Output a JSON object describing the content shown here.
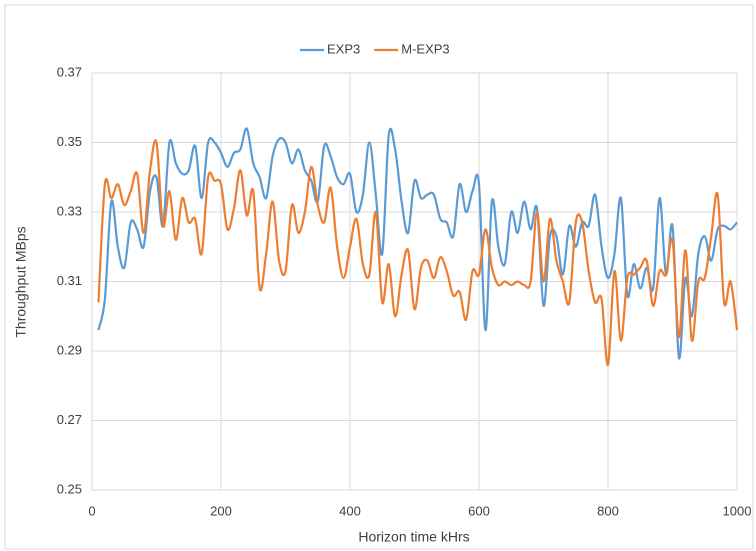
{
  "chart_data": {
    "type": "line",
    "x": [
      10,
      20,
      30,
      40,
      50,
      60,
      70,
      80,
      90,
      100,
      110,
      120,
      130,
      140,
      150,
      160,
      170,
      180,
      190,
      200,
      210,
      220,
      230,
      240,
      250,
      260,
      270,
      280,
      290,
      300,
      310,
      320,
      330,
      340,
      350,
      360,
      370,
      380,
      390,
      400,
      410,
      420,
      430,
      440,
      450,
      460,
      470,
      480,
      490,
      500,
      510,
      520,
      530,
      540,
      550,
      560,
      570,
      580,
      590,
      600,
      610,
      620,
      630,
      640,
      650,
      660,
      670,
      680,
      690,
      700,
      710,
      720,
      730,
      740,
      750,
      760,
      770,
      780,
      790,
      800,
      810,
      820,
      830,
      840,
      850,
      860,
      870,
      880,
      890,
      900,
      910,
      920,
      930,
      940,
      950,
      960,
      970,
      980,
      990,
      1000
    ],
    "series": [
      {
        "name": "EXP3",
        "color": "#5b9bd5",
        "values": [
          0.296,
          0.305,
          0.333,
          0.32,
          0.314,
          0.327,
          0.325,
          0.32,
          0.336,
          0.34,
          0.326,
          0.35,
          0.344,
          0.341,
          0.342,
          0.349,
          0.334,
          0.35,
          0.35,
          0.347,
          0.343,
          0.347,
          0.348,
          0.354,
          0.344,
          0.34,
          0.334,
          0.346,
          0.351,
          0.35,
          0.344,
          0.348,
          0.342,
          0.339,
          0.333,
          0.349,
          0.346,
          0.34,
          0.338,
          0.341,
          0.33,
          0.335,
          0.35,
          0.335,
          0.318,
          0.352,
          0.348,
          0.333,
          0.324,
          0.339,
          0.334,
          0.335,
          0.335,
          0.328,
          0.327,
          0.323,
          0.338,
          0.33,
          0.336,
          0.338,
          0.296,
          0.333,
          0.32,
          0.315,
          0.33,
          0.324,
          0.333,
          0.325,
          0.331,
          0.303,
          0.323,
          0.323,
          0.312,
          0.326,
          0.32,
          0.327,
          0.326,
          0.335,
          0.32,
          0.311,
          0.318,
          0.334,
          0.306,
          0.315,
          0.308,
          0.314,
          0.308,
          0.334,
          0.312,
          0.326,
          0.288,
          0.311,
          0.3,
          0.318,
          0.323,
          0.316,
          0.325,
          0.326,
          0.325,
          0.327
        ]
      },
      {
        "name": "M-EXP3",
        "color": "#ed7d31",
        "values": [
          0.304,
          0.338,
          0.334,
          0.338,
          0.332,
          0.336,
          0.341,
          0.324,
          0.342,
          0.35,
          0.326,
          0.336,
          0.322,
          0.334,
          0.327,
          0.328,
          0.318,
          0.34,
          0.339,
          0.338,
          0.325,
          0.331,
          0.342,
          0.329,
          0.336,
          0.308,
          0.318,
          0.333,
          0.316,
          0.313,
          0.332,
          0.324,
          0.33,
          0.343,
          0.332,
          0.327,
          0.337,
          0.32,
          0.311,
          0.32,
          0.328,
          0.315,
          0.312,
          0.33,
          0.304,
          0.315,
          0.3,
          0.312,
          0.319,
          0.302,
          0.314,
          0.316,
          0.311,
          0.317,
          0.313,
          0.306,
          0.307,
          0.299,
          0.313,
          0.312,
          0.325,
          0.314,
          0.309,
          0.31,
          0.309,
          0.31,
          0.309,
          0.31,
          0.33,
          0.31,
          0.328,
          0.316,
          0.31,
          0.304,
          0.327,
          0.327,
          0.313,
          0.304,
          0.305,
          0.286,
          0.313,
          0.293,
          0.311,
          0.312,
          0.314,
          0.316,
          0.303,
          0.313,
          0.312,
          0.322,
          0.294,
          0.319,
          0.293,
          0.31,
          0.311,
          0.323,
          0.335,
          0.304,
          0.31,
          0.296
        ]
      }
    ],
    "xlabel": "Horizon time kHrs",
    "ylabel": "Throughput MBps",
    "xlim": [
      0,
      1000
    ],
    "xticks": [
      0,
      200,
      400,
      600,
      800,
      1000
    ],
    "ylim": [
      0.25,
      0.37
    ],
    "yticks": [
      0.25,
      0.27,
      0.29,
      0.31,
      0.33,
      0.35,
      0.37
    ],
    "grid": true,
    "legend": "top"
  }
}
